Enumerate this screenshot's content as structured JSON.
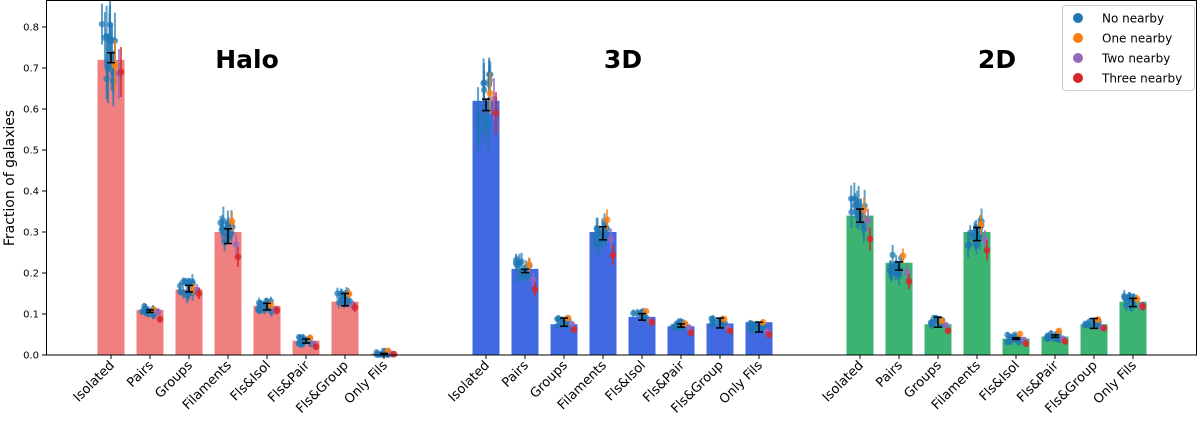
{
  "chart_data": {
    "type": "bar",
    "title": "",
    "xlabel": "",
    "ylabel": "Fraction of galaxies",
    "ylim": [
      0.0,
      0.865
    ],
    "yticks": [
      0.0,
      0.1,
      0.2,
      0.3,
      0.4,
      0.5,
      0.6,
      0.7,
      0.8
    ],
    "ytick_labels": [
      "0.0",
      "0.1",
      "0.2",
      "0.3",
      "0.4",
      "0.5",
      "0.6",
      "0.7",
      "0.8"
    ],
    "grid": false,
    "legend_position": "upper right",
    "categories": [
      "Isolated",
      "Pairs",
      "Groups",
      "Filaments",
      "Fls&Isol",
      "Fls&Pair",
      "Fls&Group",
      "Only Fils"
    ],
    "panels": [
      {
        "name": "Halo",
        "color": "#F08080",
        "values": [
          0.72,
          0.11,
          0.16,
          0.3,
          0.12,
          0.035,
          0.13,
          0.003
        ],
        "mean_points": [
          0.725,
          0.107,
          0.162,
          0.29,
          0.118,
          0.034,
          0.135,
          0.003
        ],
        "mean_errors": [
          0.012,
          0.003,
          0.008,
          0.018,
          0.008,
          0.005,
          0.015,
          0.001
        ]
      },
      {
        "name": "3D",
        "color": "#4169E1",
        "values": [
          0.62,
          0.21,
          0.075,
          0.3,
          0.093,
          0.07,
          0.077,
          0.08
        ],
        "mean_points": [
          0.61,
          0.205,
          0.08,
          0.297,
          0.093,
          0.072,
          0.078,
          0.068
        ],
        "mean_errors": [
          0.014,
          0.004,
          0.01,
          0.016,
          0.008,
          0.004,
          0.012,
          0.012
        ]
      },
      {
        "name": "2D",
        "color": "#3CB371",
        "values": [
          0.34,
          0.225,
          0.075,
          0.3,
          0.04,
          0.045,
          0.075,
          0.13
        ],
        "mean_points": [
          0.34,
          0.217,
          0.08,
          0.295,
          0.04,
          0.046,
          0.077,
          0.128
        ],
        "mean_errors": [
          0.016,
          0.01,
          0.012,
          0.016,
          0.002,
          0.003,
          0.012,
          0.01
        ]
      }
    ],
    "legend": [
      {
        "label": "No nearby",
        "color": "#1F77B4"
      },
      {
        "label": "One nearby",
        "color": "#FF7F0E"
      },
      {
        "label": "Two nearby",
        "color": "#9467BD"
      },
      {
        "label": "Three nearby",
        "color": "#D62728"
      }
    ],
    "scatter_note": "Each bar is overlaid with scatter points with error bars for individual samples colored by number of nearby galaxies"
  }
}
